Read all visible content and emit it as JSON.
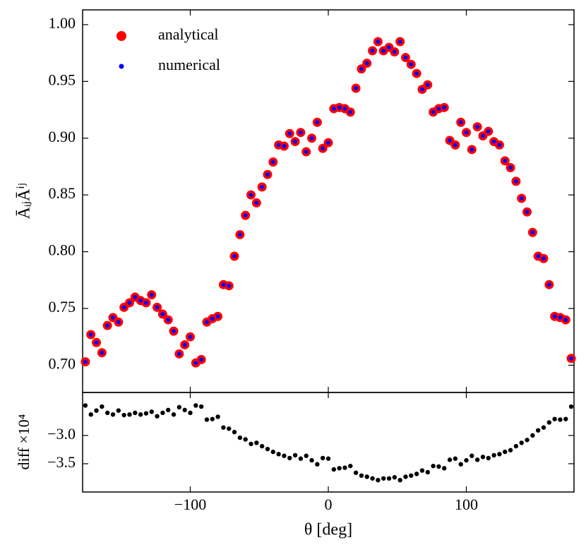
{
  "chart_data": [
    {
      "type": "scatter",
      "ylabel": "ĀᵢⱼĀⁱʲ",
      "x": [
        -176,
        -172,
        -168,
        -164,
        -160,
        -156,
        -152,
        -148,
        -144,
        -140,
        -136,
        -132,
        -128,
        -124,
        -120,
        -116,
        -112,
        -108,
        -104,
        -100,
        -96,
        -92,
        -88,
        -84,
        -80,
        -76,
        -72,
        -68,
        -64,
        -60,
        -56,
        -52,
        -48,
        -44,
        -40,
        -36,
        -32,
        -28,
        -24,
        -20,
        -16,
        -12,
        -8,
        -4,
        0,
        4,
        8,
        12,
        16,
        20,
        24,
        28,
        32,
        36,
        40,
        44,
        48,
        52,
        56,
        60,
        64,
        68,
        72,
        76,
        80,
        84,
        88,
        92,
        96,
        100,
        104,
        108,
        112,
        116,
        120,
        124,
        128,
        132,
        136,
        140,
        144,
        148,
        152,
        156,
        160,
        164,
        168,
        172,
        176
      ],
      "series": [
        {
          "name": "analytical",
          "color": "#ff0000",
          "values": [
            0.703,
            0.727,
            0.72,
            0.711,
            0.735,
            0.742,
            0.738,
            0.751,
            0.755,
            0.76,
            0.757,
            0.755,
            0.762,
            0.751,
            0.745,
            0.74,
            0.73,
            0.71,
            0.718,
            0.725,
            0.702,
            0.705,
            0.738,
            0.741,
            0.743,
            0.771,
            0.77,
            0.796,
            0.815,
            0.832,
            0.85,
            0.843,
            0.857,
            0.868,
            0.879,
            0.894,
            0.893,
            0.904,
            0.897,
            0.905,
            0.888,
            0.9,
            0.914,
            0.891,
            0.896,
            0.926,
            0.927,
            0.926,
            0.923,
            0.944,
            0.961,
            0.966,
            0.977,
            0.985,
            0.977,
            0.98,
            0.976,
            0.985,
            0.971,
            0.965,
            0.957,
            0.943,
            0.947,
            0.923,
            0.926,
            0.927,
            0.898,
            0.894,
            0.914,
            0.905,
            0.89,
            0.91,
            0.902,
            0.906,
            0.897,
            0.894,
            0.88,
            0.874,
            0.862,
            0.847,
            0.835,
            0.817,
            0.796,
            0.794,
            0.771,
            0.743,
            0.742,
            0.74,
            0.706
          ]
        },
        {
          "name": "numerical",
          "color": "#0000ff",
          "values": [
            0.703,
            0.727,
            0.72,
            0.711,
            0.735,
            0.742,
            0.738,
            0.751,
            0.755,
            0.76,
            0.757,
            0.755,
            0.762,
            0.751,
            0.745,
            0.74,
            0.73,
            0.71,
            0.718,
            0.725,
            0.702,
            0.705,
            0.738,
            0.741,
            0.743,
            0.771,
            0.77,
            0.796,
            0.815,
            0.832,
            0.85,
            0.843,
            0.857,
            0.868,
            0.879,
            0.894,
            0.893,
            0.904,
            0.897,
            0.905,
            0.888,
            0.9,
            0.914,
            0.891,
            0.896,
            0.926,
            0.927,
            0.926,
            0.923,
            0.944,
            0.961,
            0.966,
            0.977,
            0.985,
            0.977,
            0.98,
            0.976,
            0.985,
            0.971,
            0.965,
            0.957,
            0.943,
            0.947,
            0.923,
            0.926,
            0.927,
            0.898,
            0.894,
            0.914,
            0.905,
            0.89,
            0.91,
            0.902,
            0.906,
            0.897,
            0.894,
            0.88,
            0.874,
            0.862,
            0.847,
            0.835,
            0.817,
            0.796,
            0.794,
            0.771,
            0.743,
            0.742,
            0.74,
            0.706
          ]
        }
      ],
      "xlim": [
        -178,
        178
      ],
      "ylim": [
        0.676,
        1.013
      ],
      "yticks": [
        {
          "value": 0.7,
          "label": "0.70"
        },
        0.75,
        {
          "value": 0.8,
          "label": "0.80"
        },
        0.85,
        {
          "value": 0.9,
          "label": "0.90"
        },
        0.95,
        {
          "value": 1.0,
          "label": "1.00"
        }
      ],
      "legend": "upper left"
    },
    {
      "type": "scatter",
      "xlabel": "θ [deg]",
      "ylabel": "diff ×10⁴",
      "x": [
        -176,
        -172,
        -168,
        -164,
        -160,
        -156,
        -152,
        -148,
        -144,
        -140,
        -136,
        -132,
        -128,
        -124,
        -120,
        -116,
        -112,
        -108,
        -104,
        -100,
        -96,
        -92,
        -88,
        -84,
        -80,
        -76,
        -72,
        -68,
        -64,
        -60,
        -56,
        -52,
        -48,
        -44,
        -40,
        -36,
        -32,
        -28,
        -24,
        -20,
        -16,
        -12,
        -8,
        -4,
        0,
        4,
        8,
        12,
        16,
        20,
        24,
        28,
        32,
        36,
        40,
        44,
        48,
        52,
        56,
        60,
        64,
        68,
        72,
        76,
        80,
        84,
        88,
        92,
        96,
        100,
        104,
        108,
        112,
        116,
        120,
        124,
        128,
        132,
        136,
        140,
        144,
        148,
        152,
        156,
        160,
        164,
        168,
        172,
        176
      ],
      "series": [
        {
          "color": "#000000",
          "values": [
            -2.47,
            -2.63,
            -2.56,
            -2.49,
            -2.6,
            -2.63,
            -2.56,
            -2.64,
            -2.63,
            -2.6,
            -2.63,
            -2.61,
            -2.58,
            -2.66,
            -2.6,
            -2.55,
            -2.63,
            -2.5,
            -2.55,
            -2.6,
            -2.47,
            -2.49,
            -2.72,
            -2.71,
            -2.67,
            -2.86,
            -2.88,
            -2.94,
            -3.04,
            -3.07,
            -3.15,
            -3.13,
            -3.19,
            -3.24,
            -3.29,
            -3.33,
            -3.36,
            -3.4,
            -3.35,
            -3.41,
            -3.36,
            -3.44,
            -3.51,
            -3.4,
            -3.41,
            -3.6,
            -3.58,
            -3.57,
            -3.54,
            -3.66,
            -3.71,
            -3.73,
            -3.76,
            -3.79,
            -3.76,
            -3.76,
            -3.74,
            -3.79,
            -3.73,
            -3.71,
            -3.68,
            -3.62,
            -3.65,
            -3.54,
            -3.55,
            -3.58,
            -3.43,
            -3.41,
            -3.51,
            -3.44,
            -3.36,
            -3.43,
            -3.38,
            -3.4,
            -3.35,
            -3.33,
            -3.29,
            -3.26,
            -3.19,
            -3.13,
            -3.08,
            -3.0,
            -2.91,
            -2.86,
            -2.77,
            -2.71,
            -2.72,
            -2.71,
            -2.49
          ]
        }
      ],
      "xlim": [
        -178,
        178
      ],
      "xticks": [
        {
          "value": -100,
          "label": "−100"
        },
        0,
        100
      ],
      "ylim": [
        -4.0,
        -2.24
      ],
      "yticks": [
        {
          "value": -3.0,
          "label": "−3.0"
        },
        {
          "value": -3.5,
          "label": "−3.5"
        }
      ]
    }
  ]
}
